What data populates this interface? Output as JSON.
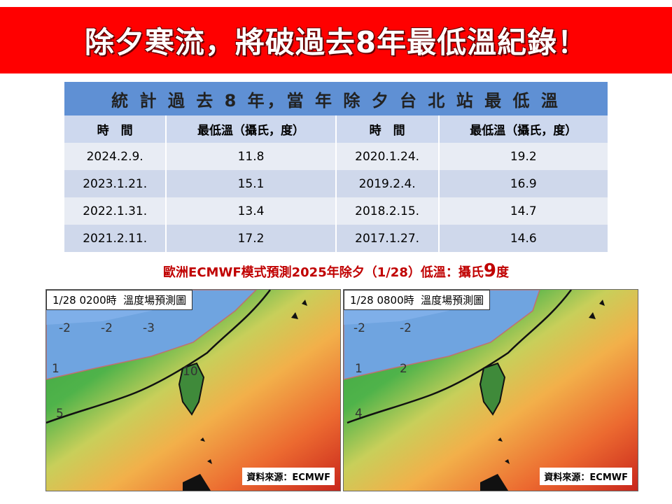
{
  "banner": {
    "title": "除夕寒流，將破過去8年最低溫紀錄！"
  },
  "table": {
    "title": "統 計 過 去 8 年，當 年 除 夕 台 北 站 最 低 溫",
    "header": [
      "時　間",
      "最低溫（攝氏，度）",
      "時　間",
      "最低溫（攝氏，度）"
    ],
    "rows": [
      [
        "2024.2.9.",
        "11.8",
        "2020.1.24.",
        "19.2"
      ],
      [
        "2023.1.21.",
        "15.1",
        "2019.2.4.",
        "16.9"
      ],
      [
        "2022.1.31.",
        "13.4",
        "2018.2.15.",
        "14.7"
      ],
      [
        "2021.2.11.",
        "17.2",
        "2017.1.27.",
        "14.6"
      ]
    ]
  },
  "forecast": {
    "text": "歐洲ECMWF模式預測2025年除夕（1/28）低溫：攝氏",
    "value": "9",
    "unit": "度"
  },
  "maps": [
    {
      "label": "1/28 0200時  溫度場預測圖",
      "source": "資料來源：ECMWF",
      "contour_labels": [
        "-2",
        "-2",
        "-3",
        "1",
        "5",
        "10"
      ]
    },
    {
      "label": "1/28 0800時  溫度場預測圖",
      "source": "資料來源：ECMWF",
      "contour_labels": [
        "-2",
        "-2",
        "1",
        "2",
        "4"
      ]
    }
  ]
}
